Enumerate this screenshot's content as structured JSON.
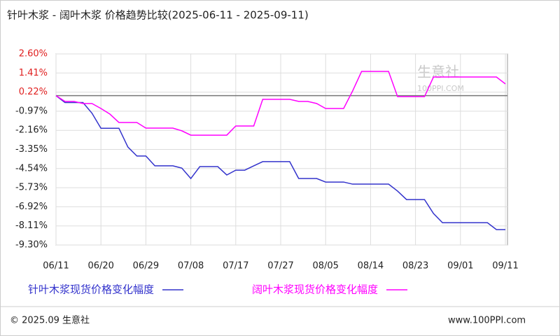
{
  "chart_data": {
    "type": "line",
    "title": "针叶木浆 - 阔叶木浆 价格趋势比较(2025-06-11 - 2025-09-11)",
    "categories": [
      "06/11",
      null,
      null,
      null,
      null,
      "06/20",
      null,
      null,
      null,
      null,
      "06/29",
      null,
      null,
      null,
      null,
      "07/08",
      null,
      null,
      null,
      null,
      "07/17",
      null,
      null,
      null,
      null,
      "07/27",
      null,
      null,
      null,
      null,
      "08/05",
      null,
      null,
      null,
      null,
      "08/14",
      null,
      null,
      null,
      null,
      "08/23",
      null,
      null,
      null,
      null,
      "09/01",
      null,
      null,
      null,
      null,
      "09/11"
    ],
    "series": [
      {
        "name": "针叶木浆现货价格变化幅度",
        "color": "#3333cc",
        "values": [
          0,
          -0.43,
          -0.43,
          -0.43,
          -1.09,
          -2.03,
          -2.03,
          -2.03,
          -3.2,
          -3.76,
          -3.76,
          -4.37,
          -4.37,
          -4.37,
          -4.51,
          -5.16,
          -4.42,
          -4.42,
          -4.42,
          -4.94,
          -4.64,
          -4.64,
          -4.37,
          -4.11,
          -4.11,
          -4.11,
          -4.11,
          -5.16,
          -5.16,
          -5.16,
          -5.38,
          -5.38,
          -5.38,
          -5.51,
          -5.51,
          -5.51,
          -5.51,
          -5.51,
          -5.94,
          -6.47,
          -6.47,
          -6.47,
          -7.34,
          -7.91,
          -7.91,
          -7.91,
          -7.91,
          -7.91,
          -7.91,
          -8.34,
          -8.34
        ]
      },
      {
        "name": "阔叶木浆现货价格变化幅度",
        "color": "#ff00ff",
        "values": [
          0,
          -0.36,
          -0.36,
          -0.49,
          -0.49,
          -0.8,
          -1.15,
          -1.67,
          -1.67,
          -1.67,
          -2.02,
          -2.02,
          -2.02,
          -2.02,
          -2.19,
          -2.46,
          -2.46,
          -2.46,
          -2.46,
          -2.46,
          -1.89,
          -1.89,
          -1.89,
          -0.23,
          -0.23,
          -0.23,
          -0.23,
          -0.36,
          -0.36,
          -0.49,
          -0.8,
          -0.8,
          -0.8,
          0.29,
          1.51,
          1.51,
          1.51,
          1.51,
          -0.06,
          -0.06,
          -0.06,
          -0.06,
          1.16,
          1.16,
          1.16,
          1.16,
          1.16,
          1.16,
          1.16,
          1.16,
          0.73
        ]
      }
    ],
    "ylim": [
      -9.3,
      2.6
    ],
    "yticks": [
      {
        "value": 2.6,
        "label": "2.60%"
      },
      {
        "value": 1.41,
        "label": "1.41%"
      },
      {
        "value": 0.22,
        "label": "0.22%"
      },
      {
        "value": -0.97,
        "label": "-0.97%"
      },
      {
        "value": -2.16,
        "label": "-2.16%"
      },
      {
        "value": -3.35,
        "label": "-3.35%"
      },
      {
        "value": -4.54,
        "label": "-4.54%"
      },
      {
        "value": -5.73,
        "label": "-5.73%"
      },
      {
        "value": -6.92,
        "label": "-6.92%"
      },
      {
        "value": -8.11,
        "label": "-8.11%"
      },
      {
        "value": -9.3,
        "label": "-9.30%"
      }
    ],
    "grid": true,
    "legend": "bottom",
    "watermark": [
      "生意社",
      "100PPI.COM"
    ],
    "footer_left": "© 2025.09 生意社",
    "footer_right": "www.100PPI.com"
  }
}
